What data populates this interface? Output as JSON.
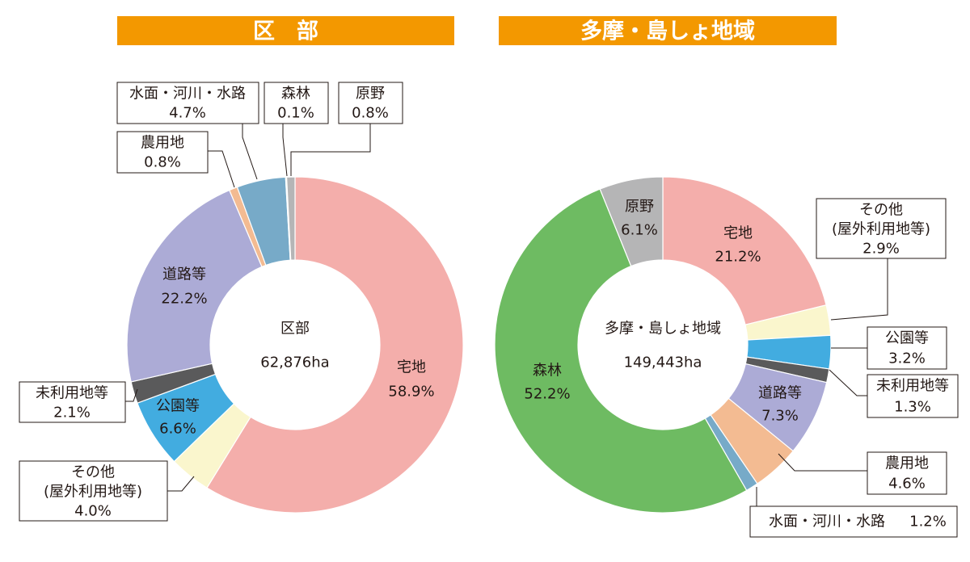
{
  "chart_data": [
    {
      "type": "pie",
      "variant": "donut",
      "title": "区　部",
      "center_label": "区部",
      "center_value": "62,876ha",
      "slices": [
        {
          "key": "takuchi",
          "name": "宅地",
          "value": 58.9,
          "label": "58.9%",
          "color": "#f4aeab"
        },
        {
          "key": "sonota",
          "name": "その他",
          "name_sub": "(屋外利用地等)",
          "value": 4.0,
          "label": "4.0%",
          "color": "#faf6cd"
        },
        {
          "key": "koen",
          "name": "公園等",
          "value": 6.6,
          "label": "6.6%",
          "color": "#42ace0"
        },
        {
          "key": "miriyo",
          "name": "未利用地等",
          "value": 2.1,
          "label": "2.1%",
          "color": "#5a5a5b"
        },
        {
          "key": "doro",
          "name": "道路等",
          "value": 22.2,
          "label": "22.2%",
          "color": "#acabd6"
        },
        {
          "key": "noyo",
          "name": "農用地",
          "value": 0.8,
          "label": "0.8%",
          "color": "#f3bb92"
        },
        {
          "key": "suimen",
          "name": "水面・河川・水路",
          "value": 4.7,
          "label": "4.7%",
          "color": "#77aac8"
        },
        {
          "key": "shinrin",
          "name": "森林",
          "value": 0.1,
          "label": "0.1%",
          "color": "#6ebb62"
        },
        {
          "key": "genya",
          "name": "原野",
          "value": 0.8,
          "label": "0.8%",
          "color": "#b5b5b6"
        }
      ]
    },
    {
      "type": "pie",
      "variant": "donut",
      "title": "多摩・島しょ地域",
      "center_label": "多摩・島しょ地域",
      "center_value": "149,443ha",
      "slices": [
        {
          "key": "takuchi",
          "name": "宅地",
          "value": 21.2,
          "label": "21.2%",
          "color": "#f4aeab"
        },
        {
          "key": "sonota",
          "name": "その他",
          "name_sub": "(屋外利用地等)",
          "value": 2.9,
          "label": "2.9%",
          "color": "#faf6cd"
        },
        {
          "key": "koen",
          "name": "公園等",
          "value": 3.2,
          "label": "3.2%",
          "color": "#42ace0"
        },
        {
          "key": "miriyo",
          "name": "未利用地等",
          "value": 1.3,
          "label": "1.3%",
          "color": "#5a5a5b"
        },
        {
          "key": "doro",
          "name": "道路等",
          "value": 7.3,
          "label": "7.3%",
          "color": "#acabd6"
        },
        {
          "key": "noyo",
          "name": "農用地",
          "value": 4.6,
          "label": "4.6%",
          "color": "#f3bb92"
        },
        {
          "key": "suimen",
          "name": "水面・河川・水路",
          "value": 1.2,
          "label": "1.2%",
          "color": "#77aac8"
        },
        {
          "key": "shinrin",
          "name": "森林",
          "value": 52.2,
          "label": "52.2%",
          "color": "#6ebb62"
        },
        {
          "key": "genya",
          "name": "原野",
          "value": 6.1,
          "label": "6.1%",
          "color": "#b5b5b6"
        }
      ]
    }
  ]
}
